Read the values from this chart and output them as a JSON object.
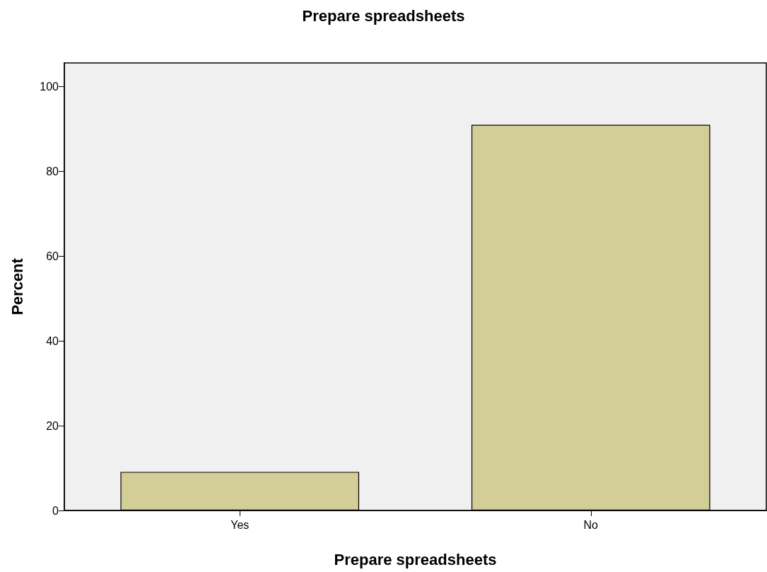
{
  "chart_data": {
    "type": "bar",
    "title": "Prepare spreadsheets",
    "xlabel": "Prepare spreadsheets",
    "ylabel": "Percent",
    "categories": [
      "Yes",
      "No"
    ],
    "values": [
      9.1,
      90.9
    ],
    "color": "#d3ce97",
    "ylim": [
      0,
      105.5
    ],
    "yticks": [
      0,
      20,
      40,
      60,
      80,
      100
    ],
    "grid": false
  }
}
